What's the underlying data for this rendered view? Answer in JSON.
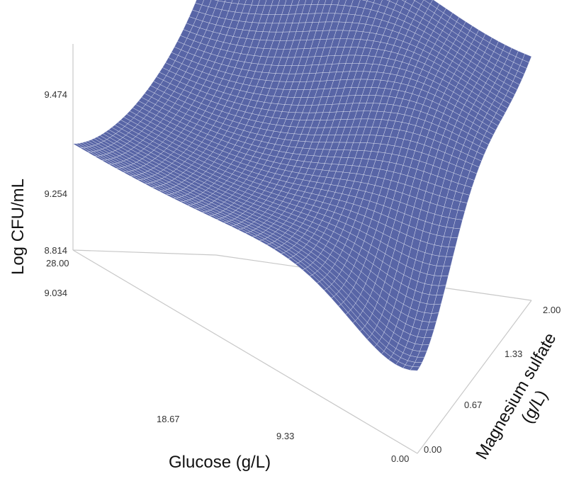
{
  "chart_data": {
    "type": "surface3d",
    "xlabel": "Glucose (g/L)",
    "ylabel": "Magnesium sulfate\n(g/L)",
    "zlabel": "Log CFU/mL",
    "x_ticks": [
      "28.00",
      "18.67",
      "9.33",
      "0.00"
    ],
    "y_ticks": [
      "0.00",
      "0.67",
      "1.33",
      "2.00"
    ],
    "z_ticks": [
      "8.814",
      "9.034",
      "9.254",
      "9.474"
    ],
    "xlim": [
      0,
      28
    ],
    "ylim": [
      0,
      2
    ],
    "zlim": [
      8.814,
      9.6
    ],
    "surface_color": "#5865a6",
    "mesh_color": "#eef0fa",
    "grid": false
  }
}
